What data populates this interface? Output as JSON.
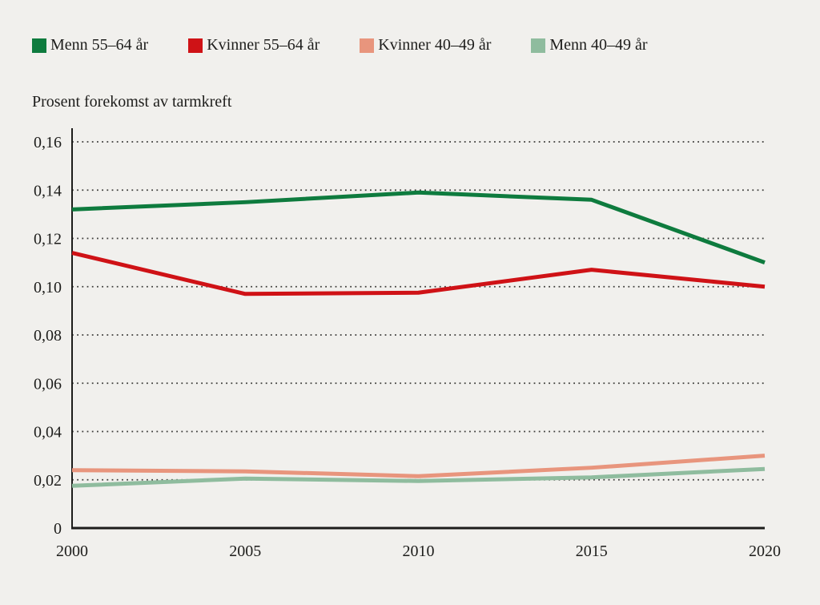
{
  "figure": {
    "background_color": "#f1f0ed",
    "text_color": "#1d1d1b",
    "grid_color": "#3d3c3a"
  },
  "chart_data": {
    "type": "line",
    "title": "Prosent forekomst av tarmkreft",
    "xlabel": "",
    "ylabel": "Prosent forekomst av tarmkreft",
    "x": [
      2000,
      2005,
      2010,
      2015,
      2020
    ],
    "x_tick_labels": [
      "2000",
      "2005",
      "2010",
      "2015",
      "2020"
    ],
    "y_ticks": [
      0,
      0.02,
      0.04,
      0.06,
      0.08,
      0.1,
      0.12,
      0.14,
      0.16
    ],
    "y_tick_labels": [
      "0",
      "0,02",
      "0,04",
      "0,06",
      "0,08",
      "0,10",
      "0,12",
      "0,14",
      "0,16"
    ],
    "ylim": [
      0,
      0.16
    ],
    "grid": "horizontal-dotted",
    "legend_position": "top-left",
    "series": [
      {
        "name": "Menn 55–64 år",
        "color": "#0e7b3e",
        "values": [
          0.132,
          0.135,
          0.139,
          0.136,
          0.11
        ]
      },
      {
        "name": "Kvinner 55–64 år",
        "color": "#cf1216",
        "values": [
          0.114,
          0.097,
          0.0975,
          0.107,
          0.1
        ]
      },
      {
        "name": "Kvinner 40–49 år",
        "color": "#e8957d",
        "values": [
          0.024,
          0.0235,
          0.0215,
          0.025,
          0.03
        ]
      },
      {
        "name": "Menn 40–49 år",
        "color": "#8fbc9e",
        "values": [
          0.0175,
          0.0205,
          0.0195,
          0.021,
          0.0245
        ]
      }
    ]
  }
}
